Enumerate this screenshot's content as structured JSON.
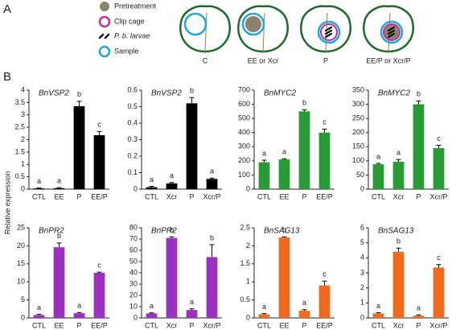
{
  "panel_labels": [
    "A",
    "B"
  ],
  "panel_a": {
    "legend": [
      "Pretreatment",
      "Clip cage",
      "P. b. larvae",
      "Sample"
    ],
    "treatments": [
      "C",
      "EE or Xcr",
      "P",
      "EE/P or Xcr/P"
    ]
  },
  "y_label": "Relative expression",
  "chart_data": [
    {
      "type": "bar",
      "title": "BnVSP2",
      "categories": [
        "CTL",
        "EE",
        "P",
        "EE/P"
      ],
      "values": [
        0.03,
        0.04,
        3.35,
        2.18
      ],
      "errors": [
        0.02,
        0.02,
        0.2,
        0.15
      ],
      "letters": [
        "a",
        "a",
        "b",
        "c"
      ],
      "color": "#000000",
      "ylim": [
        0,
        4
      ],
      "yticks": [
        0,
        0.5,
        1,
        1.5,
        2,
        2.5,
        3,
        3.5,
        4
      ]
    },
    {
      "type": "bar",
      "title": "BnVSP2",
      "categories": [
        "CTL",
        "Xcr",
        "P",
        "Xcr/P"
      ],
      "values": [
        0.012,
        0.035,
        0.52,
        0.062
      ],
      "errors": [
        0.005,
        0.005,
        0.035,
        0.005
      ],
      "letters": [
        "a",
        "a",
        "b",
        "a"
      ],
      "color": "#000000",
      "ylim": [
        0,
        0.6
      ],
      "yticks": [
        0,
        0.1,
        0.2,
        0.3,
        0.4,
        0.5,
        0.6
      ]
    },
    {
      "type": "bar",
      "title": "BnMYC2",
      "categories": [
        "CTL",
        "EE",
        "P",
        "EE/P"
      ],
      "values": [
        190,
        210,
        550,
        400
      ],
      "errors": [
        15,
        5,
        12,
        25
      ],
      "letters": [
        "a",
        "a",
        "b",
        "c"
      ],
      "color": "#2a9a36",
      "ylim": [
        0,
        700
      ],
      "yticks": [
        0,
        100,
        200,
        300,
        400,
        500,
        600,
        700
      ]
    },
    {
      "type": "bar",
      "title": "BnMYC2",
      "categories": [
        "CTL",
        "Xcr",
        "P",
        "Xcr/P"
      ],
      "values": [
        88,
        97,
        300,
        145
      ],
      "errors": [
        3,
        8,
        12,
        10
      ],
      "letters": [
        "a",
        "a",
        "b",
        "c"
      ],
      "color": "#2a9a36",
      "ylim": [
        0,
        350
      ],
      "yticks": [
        0,
        50,
        100,
        150,
        200,
        250,
        300,
        350
      ]
    },
    {
      "type": "bar",
      "title": "BnPR2",
      "categories": [
        "CTL",
        "EE",
        "P",
        "EE/P"
      ],
      "values": [
        0.8,
        19.6,
        1.3,
        12.5
      ],
      "errors": [
        0.2,
        1.2,
        0.2,
        0.2
      ],
      "letters": [
        "a",
        "b",
        "a",
        "c"
      ],
      "color": "#9a32bf",
      "ylim": [
        0,
        25
      ],
      "yticks": [
        0,
        5,
        10,
        15,
        20,
        25
      ]
    },
    {
      "type": "bar",
      "title": "BnPR2",
      "categories": [
        "CTL",
        "Xcr",
        "P",
        "Xcr/P"
      ],
      "values": [
        4,
        71,
        7,
        54
      ],
      "errors": [
        0.5,
        1,
        1,
        11
      ],
      "letters": [
        "a",
        "b",
        "a",
        "b"
      ],
      "color": "#9a32bf",
      "ylim": [
        0,
        80
      ],
      "yticks": [
        0,
        10,
        20,
        30,
        40,
        50,
        60,
        70,
        80
      ]
    },
    {
      "type": "bar",
      "title": "BnSAG13",
      "categories": [
        "CTL",
        "EE",
        "P",
        "EE/P"
      ],
      "values": [
        0.1,
        2.23,
        0.2,
        0.9
      ],
      "errors": [
        0.02,
        0.02,
        0.03,
        0.12
      ],
      "letters": [
        "a",
        "b",
        "a",
        "c"
      ],
      "color": "#ee6a1e",
      "ylim": [
        0,
        2.5
      ],
      "yticks": [
        0,
        0.5,
        1,
        1.5,
        2,
        2.5
      ]
    },
    {
      "type": "bar",
      "title": "BnSAG13",
      "categories": [
        "CTL",
        "Xcr",
        "P",
        "Xcr/P"
      ],
      "values": [
        0.3,
        4.4,
        0.15,
        3.35
      ],
      "errors": [
        0.05,
        0.25,
        0.05,
        0.2
      ],
      "letters": [
        "a",
        "b",
        "a",
        "c"
      ],
      "color": "#ee6a1e",
      "ylim": [
        0,
        6
      ],
      "yticks": [
        0,
        1,
        2,
        3,
        4,
        5,
        6
      ]
    }
  ]
}
